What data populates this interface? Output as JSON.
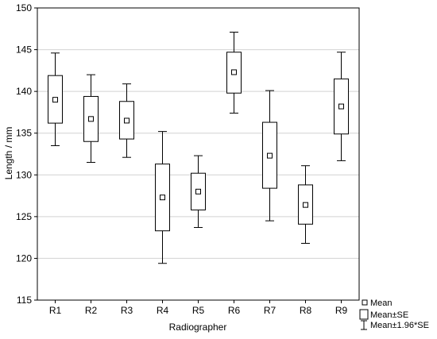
{
  "chart_data": {
    "type": "box",
    "xlabel": "Radiographer",
    "ylabel": "Length / mm",
    "ylim": [
      115,
      150
    ],
    "yticks": [
      115,
      120,
      125,
      130,
      135,
      140,
      145,
      150
    ],
    "grid": true,
    "legend_position": "bottom-right",
    "categories": [
      "R1",
      "R2",
      "R3",
      "R4",
      "R5",
      "R6",
      "R7",
      "R8",
      "R9"
    ],
    "mean": [
      139.0,
      136.7,
      136.5,
      127.3,
      128.0,
      142.3,
      132.3,
      126.4,
      138.2
    ],
    "mean_minus_se": [
      136.2,
      134.0,
      134.3,
      123.3,
      125.8,
      139.8,
      128.4,
      124.1,
      134.9
    ],
    "mean_plus_se": [
      141.9,
      139.4,
      138.8,
      131.3,
      130.2,
      144.7,
      136.3,
      128.8,
      141.5
    ],
    "mean_minus_1_96_se": [
      133.5,
      131.5,
      132.1,
      119.4,
      123.7,
      137.4,
      124.5,
      121.8,
      131.7
    ],
    "mean_plus_1_96_se": [
      144.6,
      142.0,
      140.9,
      135.2,
      132.3,
      147.1,
      140.1,
      131.1,
      144.7
    ],
    "legend": [
      {
        "symbol": "mean-marker",
        "label": "Mean"
      },
      {
        "symbol": "box",
        "label": "Mean±SE"
      },
      {
        "symbol": "whisker",
        "label": "Mean±1.96*SE"
      }
    ]
  }
}
